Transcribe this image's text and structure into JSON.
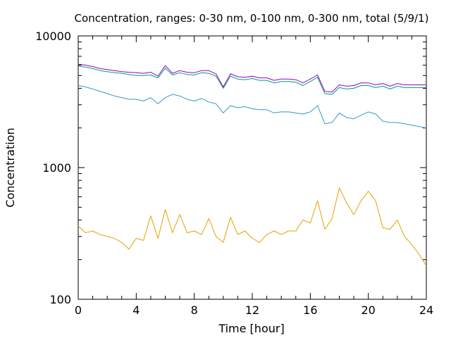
{
  "chart_data": {
    "type": "line",
    "title": "Concentration, ranges: 0-30 nm, 0-100 nm, 0-300 nm, total (5/9/1)",
    "xlabel": "Time [hour]",
    "ylabel": "Concentration",
    "xlim": [
      0,
      24
    ],
    "ylim": [
      100,
      10000
    ],
    "yscale": "log",
    "grid": false,
    "legend": "none",
    "x_ticks": [
      0,
      4,
      8,
      12,
      16,
      20,
      24
    ],
    "x_tick_labels": [
      "0",
      "4",
      "8",
      "12",
      "16",
      "20",
      "24"
    ],
    "y_ticks": [
      100,
      1000,
      10000
    ],
    "y_tick_labels": [
      "100",
      "1000",
      "10000"
    ],
    "x": [
      0.0,
      0.5,
      1.0,
      1.5,
      2.0,
      2.5,
      3.0,
      3.5,
      4.0,
      4.5,
      5.0,
      5.5,
      6.0,
      6.5,
      7.0,
      7.5,
      8.0,
      8.5,
      9.0,
      9.5,
      10.0,
      10.5,
      11.0,
      11.5,
      12.0,
      12.5,
      13.0,
      13.5,
      14.0,
      14.5,
      15.0,
      15.5,
      16.0,
      16.5,
      17.0,
      17.5,
      18.0,
      18.5,
      19.0,
      19.5,
      20.0,
      20.5,
      21.0,
      21.5,
      22.0,
      22.5,
      23.0,
      23.5,
      24.0
    ],
    "series": [
      {
        "color": "#e6a000",
        "values": [
          360,
          320,
          330,
          310,
          300,
          290,
          270,
          240,
          290,
          280,
          430,
          290,
          480,
          320,
          440,
          320,
          330,
          310,
          410,
          300,
          270,
          420,
          310,
          330,
          290,
          270,
          310,
          330,
          310,
          330,
          330,
          400,
          380,
          560,
          340,
          410,
          700,
          540,
          440,
          560,
          660,
          560,
          350,
          340,
          400,
          300,
          260,
          220,
          180
        ]
      },
      {
        "color": "#3399cc",
        "values": [
          4200,
          4100,
          3950,
          3800,
          3650,
          3500,
          3400,
          3300,
          3300,
          3200,
          3400,
          3050,
          3400,
          3600,
          3500,
          3300,
          3200,
          3350,
          3150,
          3050,
          2600,
          2950,
          2850,
          2900,
          2800,
          2750,
          2750,
          2600,
          2650,
          2650,
          2600,
          2550,
          2650,
          2950,
          2150,
          2200,
          2600,
          2400,
          2350,
          2500,
          2650,
          2550,
          2250,
          2200,
          2200,
          2150,
          2100,
          2050,
          2000
        ]
      },
      {
        "color": "#009e73",
        "values": [
          5900,
          5800,
          5650,
          5450,
          5350,
          5250,
          5200,
          5100,
          5000,
          5000,
          5050,
          4800,
          5700,
          5050,
          5250,
          5100,
          5050,
          5250,
          5200,
          4950,
          4000,
          4950,
          4700,
          4650,
          4750,
          4600,
          4600,
          4400,
          4500,
          4500,
          4450,
          4200,
          4500,
          4850,
          3650,
          3600,
          4050,
          3950,
          4000,
          4200,
          4200,
          4050,
          4150,
          3950,
          4150,
          4050,
          4050,
          4050,
          4050
        ]
      },
      {
        "color": "#9400d3",
        "values": [
          6100,
          6000,
          5850,
          5650,
          5550,
          5450,
          5350,
          5300,
          5250,
          5200,
          5300,
          4950,
          5950,
          5200,
          5450,
          5300,
          5250,
          5450,
          5450,
          5150,
          4100,
          5150,
          4900,
          4850,
          4950,
          4800,
          4800,
          4600,
          4700,
          4700,
          4650,
          4400,
          4700,
          5050,
          3800,
          3750,
          4250,
          4150,
          4200,
          4400,
          4400,
          4250,
          4350,
          4150,
          4350,
          4250,
          4250,
          4250,
          4250
        ]
      }
    ]
  }
}
